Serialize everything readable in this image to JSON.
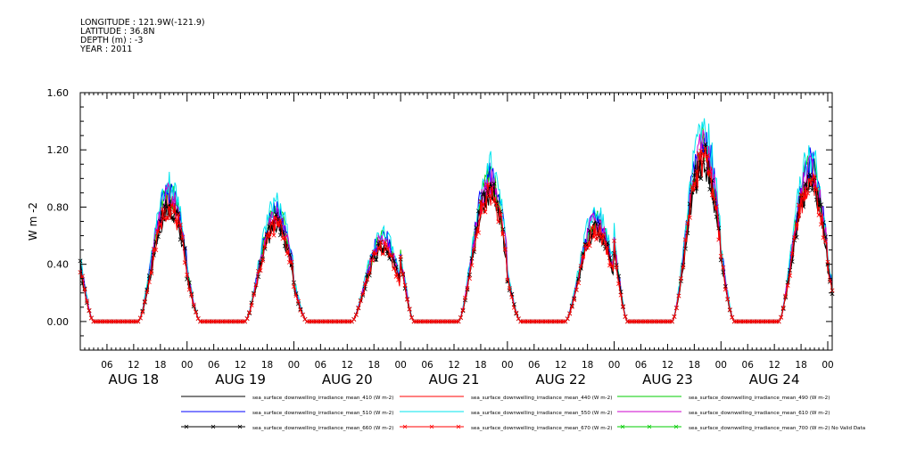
{
  "header": {
    "longitude": "LONGITUDE : 121.9W(-121.9)",
    "latitude": "LATITUDE : 36.8N",
    "depth": "DEPTH (m) : -3",
    "year": "YEAR : 2011"
  },
  "chart_data": {
    "type": "line",
    "title": "",
    "xlabel": "",
    "ylabel": "W m-2",
    "ylim": [
      -0.2,
      1.6
    ],
    "y_ticks": [
      "0.00",
      "0.40",
      "0.80",
      "1.20",
      "1.60"
    ],
    "x_hour_ticks": [
      "06",
      "12",
      "18",
      "00",
      "06",
      "12",
      "18",
      "00",
      "06",
      "12",
      "18",
      "00",
      "06",
      "12",
      "18",
      "00",
      "06",
      "12",
      "18",
      "00",
      "06",
      "12",
      "18",
      "00",
      "06",
      "12",
      "18",
      "00"
    ],
    "x_day_labels": [
      "AUG 18",
      "AUG 19",
      "AUG 20",
      "AUG 21",
      "AUG 22",
      "AUG 23",
      "AUG 24"
    ],
    "x_range_hours": [
      0,
      169
    ],
    "day_peaks": [
      0.85,
      0.72,
      0.55,
      0.95,
      0.68,
      1.18,
      1.02
    ],
    "series": [
      {
        "name": "sea_surface_downwelling_irradiance_mean_410 (W m-2)",
        "color": "#000000",
        "scale": 0.93,
        "marker": false
      },
      {
        "name": "sea_surface_downwelling_irradiance_mean_440 (W m-2)",
        "color": "#ff0000",
        "scale": 0.97,
        "marker": false
      },
      {
        "name": "sea_surface_downwelling_irradiance_mean_490 (W m-2)",
        "color": "#00cc00",
        "scale": 1.05,
        "marker": false
      },
      {
        "name": "sea_surface_downwelling_irradiance_mean_510 (W m-2)",
        "color": "#0000ff",
        "scale": 1.08,
        "marker": false
      },
      {
        "name": "sea_surface_downwelling_irradiance_mean_550 (W m-2)",
        "color": "#00e5ee",
        "scale": 1.14,
        "marker": false
      },
      {
        "name": "sea_surface_downwelling_irradiance_mean_610 (W m-2)",
        "color": "#cc00cc",
        "scale": 1.03,
        "marker": false
      },
      {
        "name": "sea_surface_downwelling_irradiance_mean_660 (W m-2)",
        "color": "#000000",
        "scale": 0.96,
        "marker": true
      },
      {
        "name": "sea_surface_downwelling_irradiance_mean_670 (W m-2)",
        "color": "#ff0000",
        "scale": 0.94,
        "marker": true
      },
      {
        "name": "sea_surface_downwelling_irradiance_mean_700 (W m-2) No Valid Data",
        "color": "#00cc00",
        "scale": 0,
        "marker": true
      }
    ]
  }
}
